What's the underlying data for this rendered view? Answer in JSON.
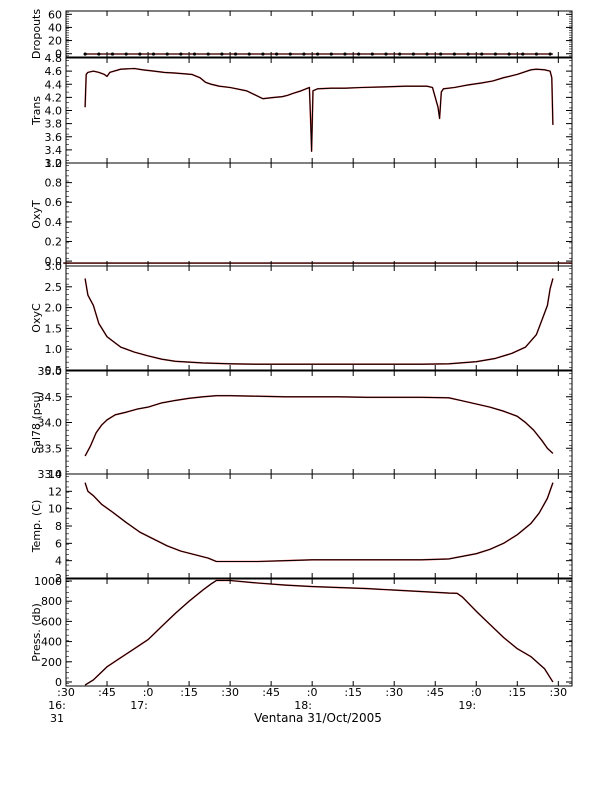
{
  "figure": {
    "caption": "Ventana 31/Oct/2005"
  },
  "colors": {
    "axis": "#000000",
    "trace": "#000000",
    "flag": "#ff0000",
    "background": "#ffffff"
  },
  "chart_data": {
    "type": "line",
    "shared_x": {
      "unit": "minutes since 16:30",
      "range": [
        0,
        185
      ],
      "ticks": [
        {
          "value": 0,
          "label": ":30",
          "sub": [
            "16:",
            "31"
          ]
        },
        {
          "value": 15,
          "label": ":45",
          "sub": []
        },
        {
          "value": 30,
          "label": ":0",
          "sub": [
            "17:"
          ]
        },
        {
          "value": 45,
          "label": ":15",
          "sub": []
        },
        {
          "value": 60,
          "label": ":30",
          "sub": []
        },
        {
          "value": 75,
          "label": ":45",
          "sub": []
        },
        {
          "value": 90,
          "label": ":0",
          "sub": [
            "18:"
          ]
        },
        {
          "value": 105,
          "label": ":15",
          "sub": []
        },
        {
          "value": 120,
          "label": ":30",
          "sub": []
        },
        {
          "value": 135,
          "label": ":45",
          "sub": []
        },
        {
          "value": 150,
          "label": ":0",
          "sub": [
            "19:"
          ]
        },
        {
          "value": 165,
          "label": ":15",
          "sub": []
        },
        {
          "value": 180,
          "label": ":30",
          "sub": []
        }
      ]
    },
    "panels": [
      {
        "ylabel": "Dropouts",
        "ylim": [
          -5,
          65
        ],
        "yticks": [
          0,
          20,
          40,
          60
        ],
        "tick_labels": [
          "0",
          "20",
          "40",
          "60"
        ],
        "series": [
          {
            "x": [
              7,
              178
            ],
            "y": [
              -0.5,
              -0.5
            ]
          }
        ]
      },
      {
        "ylabel": "Trans",
        "ylim": [
          3.2,
          4.8
        ],
        "yticks": [
          3.2,
          3.4,
          3.6,
          3.8,
          4.0,
          4.2,
          4.4,
          4.6,
          4.8
        ],
        "tick_labels": [
          "3.2",
          "3.4",
          "3.6",
          "3.8",
          "4.0",
          "4.2",
          "4.4",
          "4.6",
          "4.8"
        ],
        "series": [
          {
            "x": [
              7,
              7.4,
              8,
              10,
              12,
              14,
              15,
              16,
              20,
              25,
              28,
              32,
              36,
              40,
              46,
              49,
              51,
              53,
              56,
              60,
              66,
              72,
              76,
              79,
              81,
              83,
              86,
              89,
              89.4,
              89.8,
              90.3,
              92,
              97,
              102,
              108,
              116,
              124,
              132,
              134,
              136,
              136.6,
              137.2,
              138,
              142,
              147,
              152,
              156,
              160,
              165,
              170,
              172,
              175,
              177,
              177.6,
              178
            ],
            "y": [
              4.05,
              4.55,
              4.58,
              4.6,
              4.58,
              4.55,
              4.52,
              4.58,
              4.63,
              4.64,
              4.62,
              4.6,
              4.58,
              4.57,
              4.55,
              4.5,
              4.43,
              4.4,
              4.37,
              4.35,
              4.3,
              4.18,
              4.2,
              4.21,
              4.23,
              4.26,
              4.3,
              4.35,
              3.9,
              3.38,
              4.3,
              4.33,
              4.34,
              4.34,
              4.35,
              4.36,
              4.37,
              4.37,
              4.35,
              4.05,
              3.88,
              4.28,
              4.33,
              4.35,
              4.39,
              4.42,
              4.45,
              4.5,
              4.55,
              4.62,
              4.63,
              4.62,
              4.6,
              4.5,
              3.78
            ]
          }
        ]
      },
      {
        "ylabel": "OxyT",
        "ylim": [
          -0.05,
          1.0
        ],
        "yticks": [
          0.0,
          0.2,
          0.4,
          0.6,
          0.8,
          1.0
        ],
        "tick_labels": [
          "0.0",
          "0.2",
          "0.4",
          "0.6",
          "0.8",
          "1.0"
        ],
        "series": [
          {
            "x": [
              -1,
              185
            ],
            "y": [
              -0.02,
              -0.02
            ]
          }
        ]
      },
      {
        "ylabel": "OxyC",
        "ylim": [
          0.5,
          3.0
        ],
        "yticks": [
          0.5,
          1.0,
          1.5,
          2.0,
          2.5,
          3.0
        ],
        "tick_labels": [
          "0.5",
          "1.0",
          "1.5",
          "2.0",
          "2.5",
          "3.0"
        ],
        "series": [
          {
            "x": [
              7,
              8,
              10,
              12,
              15,
              20,
              25,
              30,
              35,
              40,
              50,
              60,
              70,
              80,
              90,
              100,
              110,
              120,
              130,
              140,
              150,
              157,
              163,
              168,
              172,
              174,
              176,
              177,
              178
            ],
            "y": [
              2.7,
              2.3,
              2.05,
              1.62,
              1.3,
              1.05,
              0.93,
              0.84,
              0.76,
              0.71,
              0.67,
              0.65,
              0.64,
              0.64,
              0.64,
              0.64,
              0.64,
              0.64,
              0.64,
              0.65,
              0.7,
              0.78,
              0.9,
              1.05,
              1.35,
              1.7,
              2.05,
              2.45,
              2.7
            ]
          }
        ]
      },
      {
        "ylabel": "Sal78 (psu)",
        "ylim": [
          33.0,
          35.0
        ],
        "yticks": [
          33.0,
          33.5,
          34.0,
          34.5,
          35.0
        ],
        "tick_labels": [
          "33.0",
          "33.5",
          "34.0",
          "34.5",
          "35.0"
        ],
        "series": [
          {
            "x": [
              7,
              9,
              11,
              13,
              15,
              18,
              22,
              26,
              30,
              35,
              40,
              45,
              50,
              55,
              60,
              70,
              80,
              90,
              100,
              110,
              120,
              130,
              140,
              145,
              150,
              155,
              160,
              165,
              168,
              171,
              174,
              176,
              178
            ],
            "y": [
              33.35,
              33.55,
              33.8,
              33.95,
              34.05,
              34.15,
              34.2,
              34.26,
              34.3,
              34.38,
              34.43,
              34.47,
              34.5,
              34.52,
              34.52,
              34.51,
              34.5,
              34.5,
              34.5,
              34.49,
              34.49,
              34.49,
              34.48,
              34.42,
              34.36,
              34.3,
              34.22,
              34.12,
              34.0,
              33.85,
              33.65,
              33.5,
              33.4
            ]
          }
        ]
      },
      {
        "ylabel": "Temp. (C)",
        "ylim": [
          2,
          14
        ],
        "yticks": [
          2,
          4,
          6,
          8,
          10,
          12,
          14
        ],
        "tick_labels": [
          "2",
          "4",
          "6",
          "8",
          "10",
          "12",
          "14"
        ],
        "series": [
          {
            "x": [
              7,
              8,
              10,
              13,
              17,
              22,
              27,
              32,
              37,
              42,
              47,
              52,
              55,
              60,
              70,
              80,
              90,
              100,
              110,
              120,
              130,
              140,
              150,
              155,
              160,
              165,
              170,
              173,
              176,
              178
            ],
            "y": [
              13.0,
              12.0,
              11.5,
              10.5,
              9.6,
              8.4,
              7.3,
              6.5,
              5.7,
              5.1,
              4.7,
              4.3,
              3.9,
              3.9,
              3.9,
              4.0,
              4.1,
              4.1,
              4.1,
              4.1,
              4.1,
              4.2,
              4.8,
              5.3,
              6.0,
              7.0,
              8.3,
              9.5,
              11.2,
              13.0
            ]
          }
        ]
      },
      {
        "ylabel": "Press. (db)",
        "ylim": [
          -40,
          1020
        ],
        "yticks": [
          0,
          200,
          400,
          600,
          800,
          1000
        ],
        "tick_labels": [
          "0",
          "200",
          "400",
          "600",
          "800",
          "1000"
        ],
        "series": [
          {
            "x": [
              7,
              10,
              15,
              20,
              25,
              30,
              35,
              40,
              45,
              50,
              53,
              55,
              60,
              70,
              80,
              90,
              100,
              110,
              120,
              130,
              140,
              143,
              145,
              150,
              155,
              160,
              165,
              170,
              175,
              178
            ],
            "y": [
              -30,
              20,
              150,
              240,
              330,
              420,
              550,
              680,
              800,
              910,
              970,
              1005,
              1005,
              980,
              960,
              945,
              935,
              925,
              910,
              895,
              880,
              878,
              840,
              700,
              570,
              440,
              330,
              250,
              130,
              0
            ]
          }
        ]
      }
    ]
  }
}
